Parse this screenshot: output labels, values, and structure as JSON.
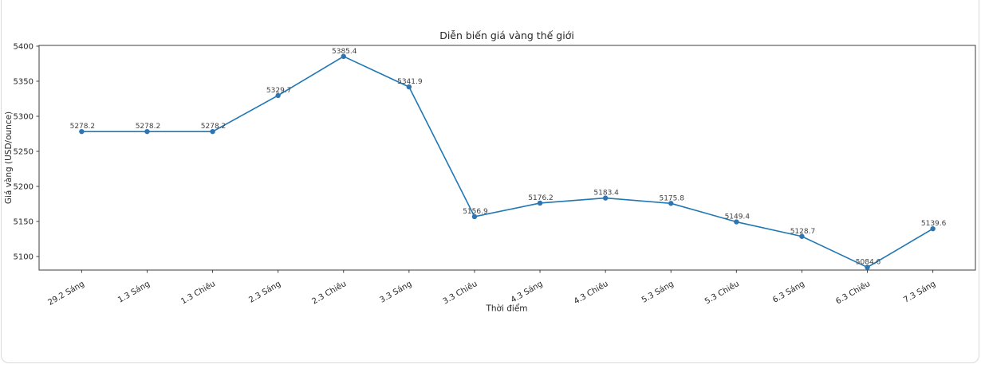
{
  "card": {
    "background": "#ffffff",
    "border_color": "#d9d9d9"
  },
  "chart_data": {
    "type": "line",
    "title": "Diễn biến giá vàng thế giới",
    "xlabel": "Thời điểm",
    "ylabel": "Giá vàng (USD/ounce)",
    "categories": [
      "29.2 Sáng",
      "1.3 Sáng",
      "1.3 Chiều",
      "2.3 Sáng",
      "2.3 Chiều",
      "3.3 Sáng",
      "3.3 Chiều",
      "4.3 Sáng",
      "4.3 Chiều",
      "5.3 Sáng",
      "5.3 Chiều",
      "6.3 Sáng",
      "6.3 Chiều",
      "7.3 Sáng"
    ],
    "values": [
      5278.2,
      5278.2,
      5278.2,
      5329.7,
      5385.4,
      5341.9,
      5156.9,
      5176.2,
      5183.4,
      5175.8,
      5149.4,
      5128.7,
      5084.6,
      5139.6
    ],
    "point_labels": [
      "5278.2",
      "5278.2",
      "5278.2",
      "5329.7",
      "5385.4",
      "5341.9",
      "5156.9",
      "5176.2",
      "5183.4",
      "5175.8",
      "5149.4",
      "5128.7",
      "5084.6",
      "5139.6"
    ],
    "yticks": [
      5100,
      5150,
      5200,
      5250,
      5300,
      5350,
      5400
    ],
    "ylim": [
      5080.7,
      5401.1
    ],
    "xlim": [
      -0.65,
      13.65
    ],
    "grid": false,
    "legend": "none",
    "tick_rotation_deg": 30,
    "line_color": "#1f77b4",
    "marker_color": "#2e75b2",
    "spine_color": "#3d3d3d",
    "text_color": "#262626"
  }
}
